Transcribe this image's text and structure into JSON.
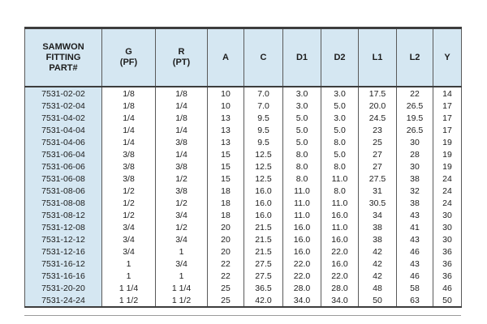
{
  "page": {
    "background": "#ffffff",
    "header_bg": "#d5e7f2",
    "part_column_bg": "#d5e7f2",
    "border_color": "#3d3d3d",
    "grid_color": "#5a5a5a",
    "text_color": "#1c1c1c"
  },
  "chart_data": {
    "type": "table",
    "title": "SAMWON fitting dimension table",
    "columns": [
      {
        "key": "part",
        "label_lines": [
          "SAMWON",
          "FITTING",
          "PART#"
        ]
      },
      {
        "key": "g",
        "label_lines": [
          "G",
          "(PF)"
        ]
      },
      {
        "key": "r",
        "label_lines": [
          "R",
          "(PT)"
        ]
      },
      {
        "key": "a",
        "label_lines": [
          "A"
        ]
      },
      {
        "key": "c",
        "label_lines": [
          "C"
        ]
      },
      {
        "key": "d1",
        "label_lines": [
          "D1"
        ]
      },
      {
        "key": "d2",
        "label_lines": [
          "D2"
        ]
      },
      {
        "key": "l1",
        "label_lines": [
          "L1"
        ]
      },
      {
        "key": "l2",
        "label_lines": [
          "L2"
        ]
      },
      {
        "key": "y",
        "label_lines": [
          "Y"
        ]
      }
    ],
    "rows": [
      [
        "7531-02-02",
        "1/8",
        "1/8",
        "10",
        "7.0",
        "3.0",
        "3.0",
        "17.5",
        "22",
        "14"
      ],
      [
        "7531-02-04",
        "1/8",
        "1/4",
        "10",
        "7.0",
        "3.0",
        "5.0",
        "20.0",
        "26.5",
        "17"
      ],
      [
        "7531-04-02",
        "1/4",
        "1/8",
        "13",
        "9.5",
        "5.0",
        "3.0",
        "24.5",
        "19.5",
        "17"
      ],
      [
        "7531-04-04",
        "1/4",
        "1/4",
        "13",
        "9.5",
        "5.0",
        "5.0",
        "23",
        "26.5",
        "17"
      ],
      [
        "7531-04-06",
        "1/4",
        "3/8",
        "13",
        "9.5",
        "5.0",
        "8.0",
        "25",
        "30",
        "19"
      ],
      [
        "7531-06-04",
        "3/8",
        "1/4",
        "15",
        "12.5",
        "8.0",
        "5.0",
        "27",
        "28",
        "19"
      ],
      [
        "7531-06-06",
        "3/8",
        "3/8",
        "15",
        "12.5",
        "8.0",
        "8.0",
        "27",
        "30",
        "19"
      ],
      [
        "7531-06-08",
        "3/8",
        "1/2",
        "15",
        "12.5",
        "8.0",
        "11.0",
        "27.5",
        "38",
        "24"
      ],
      [
        "7531-08-06",
        "1/2",
        "3/8",
        "18",
        "16.0",
        "11.0",
        "8.0",
        "31",
        "32",
        "24"
      ],
      [
        "7531-08-08",
        "1/2",
        "1/2",
        "18",
        "16.0",
        "11.0",
        "11.0",
        "30.5",
        "38",
        "24"
      ],
      [
        "7531-08-12",
        "1/2",
        "3/4",
        "18",
        "16.0",
        "11.0",
        "16.0",
        "34",
        "43",
        "30"
      ],
      [
        "7531-12-08",
        "3/4",
        "1/2",
        "20",
        "21.5",
        "16.0",
        "11.0",
        "38",
        "41",
        "30"
      ],
      [
        "7531-12-12",
        "3/4",
        "3/4",
        "20",
        "21.5",
        "16.0",
        "16.0",
        "38",
        "43",
        "30"
      ],
      [
        "7531-12-16",
        "3/4",
        "1",
        "20",
        "21.5",
        "16.0",
        "22.0",
        "42",
        "46",
        "36"
      ],
      [
        "7531-16-12",
        "1",
        "3/4",
        "22",
        "27.5",
        "22.0",
        "16.0",
        "42",
        "43",
        "36"
      ],
      [
        "7531-16-16",
        "1",
        "1",
        "22",
        "27.5",
        "22.0",
        "22.0",
        "42",
        "46",
        "36"
      ],
      [
        "7531-20-20",
        "1 1/4",
        "1 1/4",
        "25",
        "36.5",
        "28.0",
        "28.0",
        "48",
        "58",
        "46"
      ],
      [
        "7531-24-24",
        "1 1/2",
        "1 1/2",
        "25",
        "42.0",
        "34.0",
        "34.0",
        "50",
        "63",
        "50"
      ]
    ]
  }
}
